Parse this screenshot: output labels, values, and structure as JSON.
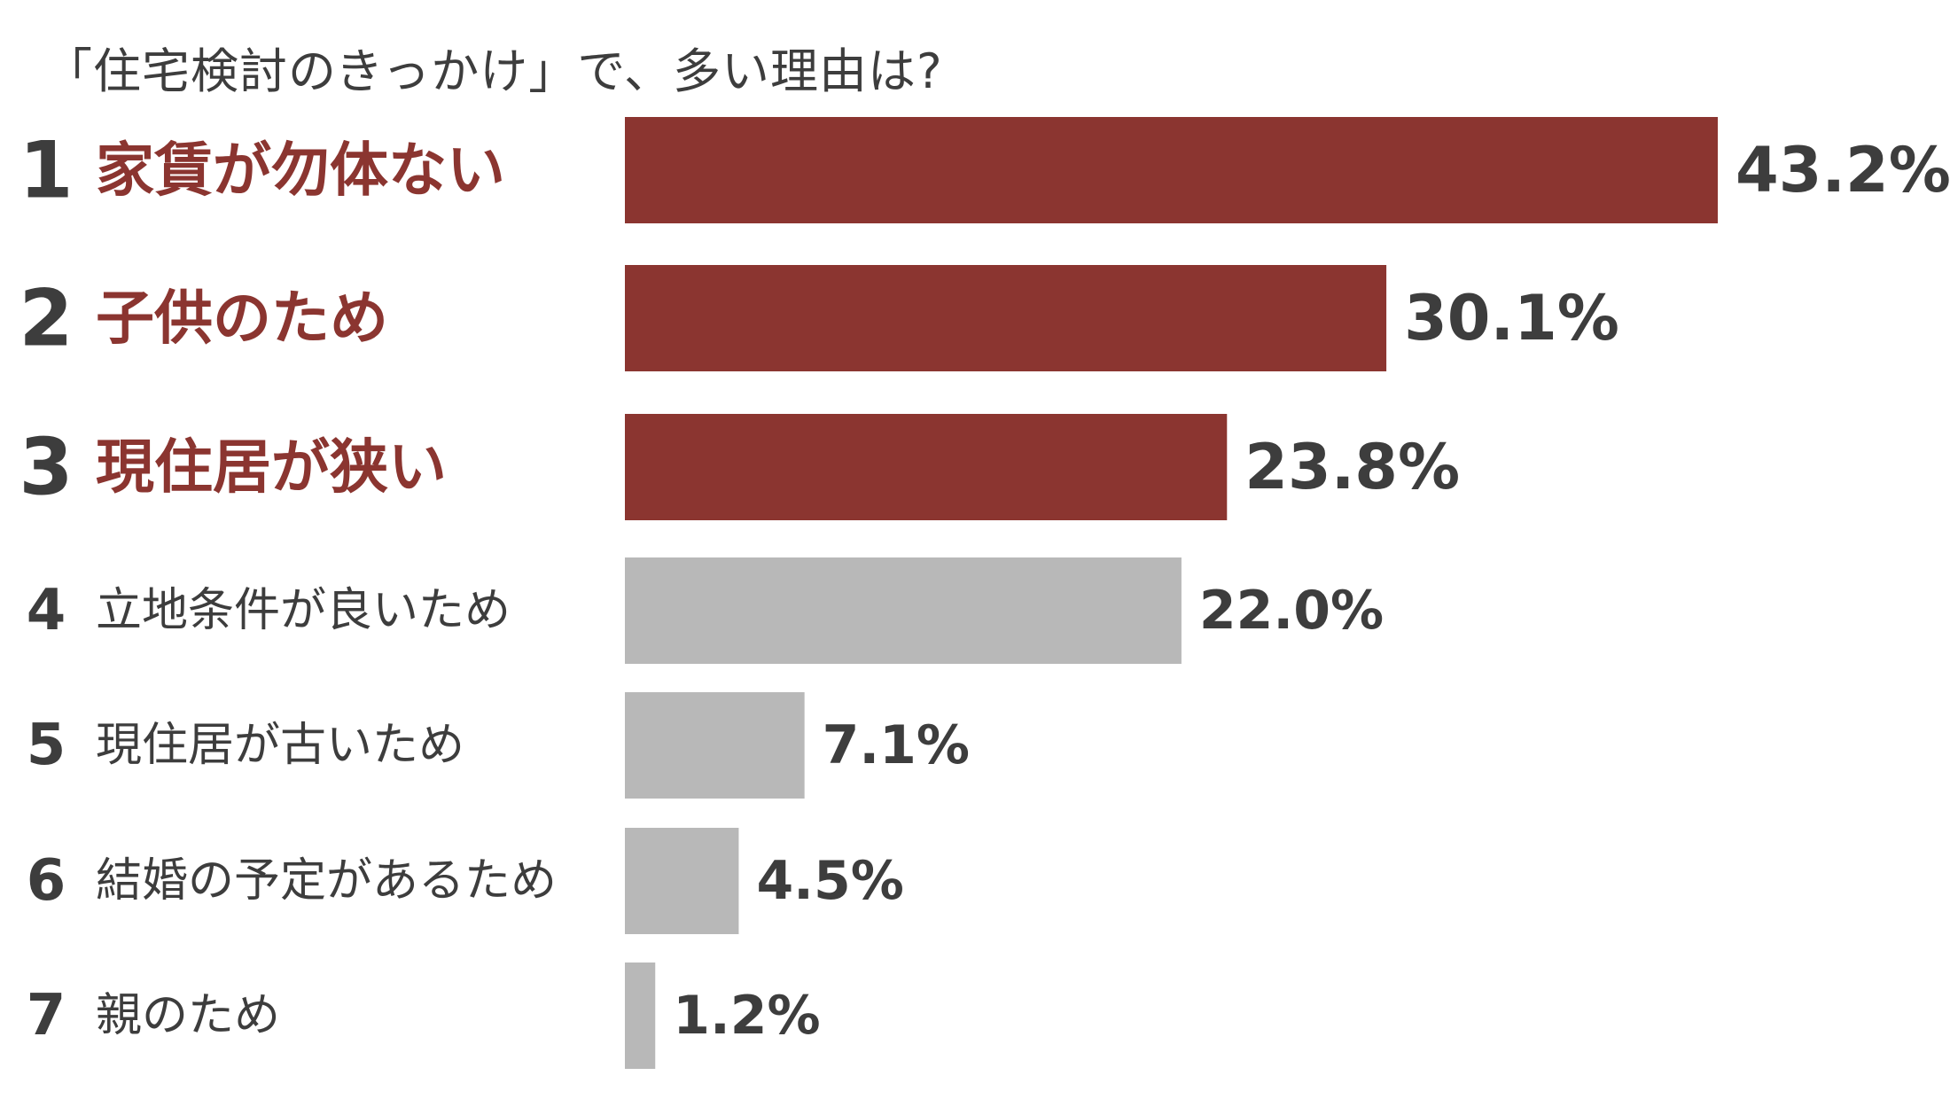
{
  "chart_data": {
    "type": "bar",
    "orientation": "horizontal",
    "title": "「住宅検討のきっかけ」で、多い理由は?",
    "ranks": [
      "1",
      "2",
      "3",
      "4",
      "5",
      "6",
      "7"
    ],
    "categories": [
      "家賃が勿体ない",
      "子供のため",
      "現住居が狭い",
      "立地条件が良いため",
      "現住居が古いため",
      "結婚の予定があるため",
      "親のため"
    ],
    "values": [
      43.2,
      30.1,
      23.8,
      22.0,
      7.1,
      4.5,
      1.2
    ],
    "value_labels": [
      "43.2%",
      "30.1%",
      "23.8%",
      "22.0%",
      "7.1%",
      "4.5%",
      "1.2%"
    ],
    "unit": "%",
    "highlight_top": 3,
    "colors": {
      "highlight": "#8b3530",
      "default": "#b8b8b8",
      "text": "#3d3d3d"
    },
    "grid": false,
    "legend": "none",
    "xlim": [
      0,
      43.2
    ]
  }
}
